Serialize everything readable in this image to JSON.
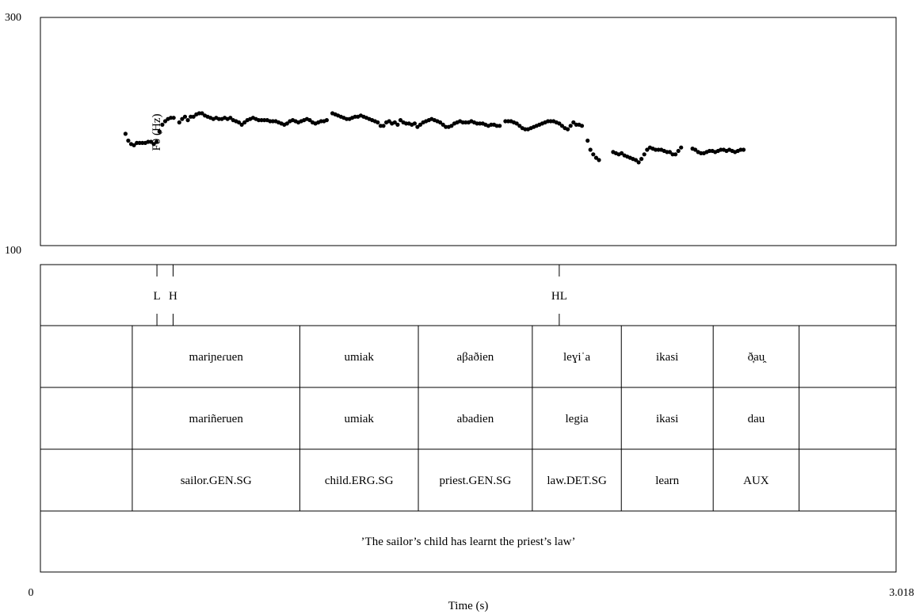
{
  "chart_data": {
    "type": "scatter",
    "xlabel": "Time (s)",
    "ylabel": "F0 (Hz)",
    "xlim": [
      0,
      3.018
    ],
    "ylim": [
      100,
      300
    ],
    "x_tick_labels": [
      "0",
      "3.018"
    ],
    "y_tick_labels": [
      "300",
      "100"
    ],
    "grid": false,
    "points": [
      [
        0.3,
        198
      ],
      [
        0.31,
        192
      ],
      [
        0.32,
        189
      ],
      [
        0.33,
        188
      ],
      [
        0.34,
        190
      ],
      [
        0.35,
        190
      ],
      [
        0.36,
        190
      ],
      [
        0.37,
        190
      ],
      [
        0.38,
        191
      ],
      [
        0.39,
        191
      ],
      [
        0.4,
        189
      ],
      [
        0.41,
        191
      ],
      [
        0.42,
        200
      ],
      [
        0.43,
        206
      ],
      [
        0.44,
        209
      ],
      [
        0.45,
        211
      ],
      [
        0.46,
        212
      ],
      [
        0.47,
        212
      ],
      [
        0.49,
        208
      ],
      [
        0.5,
        211
      ],
      [
        0.51,
        213
      ],
      [
        0.52,
        210
      ],
      [
        0.53,
        213
      ],
      [
        0.54,
        213
      ],
      [
        0.55,
        215
      ],
      [
        0.56,
        216
      ],
      [
        0.57,
        216
      ],
      [
        0.58,
        214
      ],
      [
        0.59,
        213
      ],
      [
        0.6,
        212
      ],
      [
        0.61,
        211
      ],
      [
        0.62,
        212
      ],
      [
        0.63,
        211
      ],
      [
        0.64,
        211
      ],
      [
        0.65,
        212
      ],
      [
        0.66,
        211
      ],
      [
        0.67,
        212
      ],
      [
        0.68,
        210
      ],
      [
        0.69,
        209
      ],
      [
        0.7,
        208
      ],
      [
        0.71,
        206
      ],
      [
        0.72,
        208
      ],
      [
        0.73,
        210
      ],
      [
        0.74,
        211
      ],
      [
        0.75,
        212
      ],
      [
        0.76,
        211
      ],
      [
        0.77,
        210
      ],
      [
        0.78,
        210
      ],
      [
        0.79,
        210
      ],
      [
        0.8,
        210
      ],
      [
        0.81,
        209
      ],
      [
        0.82,
        209
      ],
      [
        0.83,
        209
      ],
      [
        0.84,
        208
      ],
      [
        0.85,
        207
      ],
      [
        0.86,
        206
      ],
      [
        0.87,
        207
      ],
      [
        0.88,
        209
      ],
      [
        0.89,
        210
      ],
      [
        0.9,
        209
      ],
      [
        0.91,
        208
      ],
      [
        0.92,
        209
      ],
      [
        0.93,
        210
      ],
      [
        0.94,
        211
      ],
      [
        0.95,
        210
      ],
      [
        0.96,
        208
      ],
      [
        0.97,
        207
      ],
      [
        0.98,
        208
      ],
      [
        0.99,
        209
      ],
      [
        1.0,
        209
      ],
      [
        1.01,
        210
      ],
      [
        1.03,
        216
      ],
      [
        1.04,
        215
      ],
      [
        1.05,
        214
      ],
      [
        1.06,
        213
      ],
      [
        1.07,
        212
      ],
      [
        1.08,
        211
      ],
      [
        1.09,
        211
      ],
      [
        1.1,
        212
      ],
      [
        1.11,
        213
      ],
      [
        1.12,
        213
      ],
      [
        1.13,
        214
      ],
      [
        1.14,
        213
      ],
      [
        1.15,
        212
      ],
      [
        1.16,
        211
      ],
      [
        1.17,
        210
      ],
      [
        1.18,
        209
      ],
      [
        1.19,
        208
      ],
      [
        1.2,
        205
      ],
      [
        1.21,
        205
      ],
      [
        1.22,
        208
      ],
      [
        1.23,
        209
      ],
      [
        1.24,
        207
      ],
      [
        1.25,
        208
      ],
      [
        1.26,
        206
      ],
      [
        1.27,
        210
      ],
      [
        1.28,
        208
      ],
      [
        1.29,
        207
      ],
      [
        1.3,
        207
      ],
      [
        1.31,
        206
      ],
      [
        1.32,
        207
      ],
      [
        1.33,
        204
      ],
      [
        1.34,
        206
      ],
      [
        1.35,
        208
      ],
      [
        1.36,
        209
      ],
      [
        1.37,
        210
      ],
      [
        1.38,
        211
      ],
      [
        1.39,
        210
      ],
      [
        1.4,
        209
      ],
      [
        1.41,
        208
      ],
      [
        1.42,
        206
      ],
      [
        1.43,
        204
      ],
      [
        1.44,
        204
      ],
      [
        1.45,
        205
      ],
      [
        1.46,
        207
      ],
      [
        1.47,
        208
      ],
      [
        1.48,
        209
      ],
      [
        1.49,
        208
      ],
      [
        1.5,
        208
      ],
      [
        1.51,
        208
      ],
      [
        1.52,
        209
      ],
      [
        1.53,
        208
      ],
      [
        1.54,
        207
      ],
      [
        1.55,
        207
      ],
      [
        1.56,
        207
      ],
      [
        1.57,
        206
      ],
      [
        1.58,
        205
      ],
      [
        1.59,
        206
      ],
      [
        1.6,
        206
      ],
      [
        1.61,
        205
      ],
      [
        1.62,
        205
      ],
      [
        1.64,
        209
      ],
      [
        1.65,
        209
      ],
      [
        1.66,
        209
      ],
      [
        1.67,
        208
      ],
      [
        1.68,
        207
      ],
      [
        1.69,
        205
      ],
      [
        1.7,
        203
      ],
      [
        1.71,
        202
      ],
      [
        1.72,
        202
      ],
      [
        1.73,
        203
      ],
      [
        1.74,
        204
      ],
      [
        1.75,
        205
      ],
      [
        1.76,
        206
      ],
      [
        1.77,
        207
      ],
      [
        1.78,
        208
      ],
      [
        1.79,
        209
      ],
      [
        1.8,
        209
      ],
      [
        1.81,
        209
      ],
      [
        1.82,
        208
      ],
      [
        1.83,
        207
      ],
      [
        1.84,
        205
      ],
      [
        1.85,
        203
      ],
      [
        1.86,
        202
      ],
      [
        1.87,
        205
      ],
      [
        1.88,
        208
      ],
      [
        1.89,
        206
      ],
      [
        1.9,
        206
      ],
      [
        1.91,
        205
      ],
      [
        1.93,
        192
      ],
      [
        1.94,
        184
      ],
      [
        1.95,
        180
      ],
      [
        1.96,
        177
      ],
      [
        1.97,
        175
      ],
      [
        2.02,
        182
      ],
      [
        2.03,
        181
      ],
      [
        2.04,
        180
      ],
      [
        2.05,
        181
      ],
      [
        2.06,
        179
      ],
      [
        2.07,
        178
      ],
      [
        2.08,
        177
      ],
      [
        2.09,
        176
      ],
      [
        2.1,
        175
      ],
      [
        2.11,
        173
      ],
      [
        2.12,
        176
      ],
      [
        2.13,
        180
      ],
      [
        2.14,
        184
      ],
      [
        2.15,
        186
      ],
      [
        2.16,
        185
      ],
      [
        2.17,
        184
      ],
      [
        2.18,
        184
      ],
      [
        2.19,
        184
      ],
      [
        2.2,
        183
      ],
      [
        2.21,
        182
      ],
      [
        2.22,
        182
      ],
      [
        2.23,
        180
      ],
      [
        2.24,
        180
      ],
      [
        2.25,
        183
      ],
      [
        2.26,
        186
      ],
      [
        2.3,
        185
      ],
      [
        2.31,
        184
      ],
      [
        2.32,
        182
      ],
      [
        2.33,
        181
      ],
      [
        2.34,
        181
      ],
      [
        2.35,
        182
      ],
      [
        2.36,
        183
      ],
      [
        2.37,
        183
      ],
      [
        2.38,
        182
      ],
      [
        2.39,
        183
      ],
      [
        2.4,
        184
      ],
      [
        2.41,
        184
      ],
      [
        2.42,
        183
      ],
      [
        2.43,
        184
      ],
      [
        2.44,
        183
      ],
      [
        2.45,
        182
      ],
      [
        2.46,
        183
      ],
      [
        2.47,
        184
      ],
      [
        2.48,
        184
      ]
    ]
  },
  "annotation": {
    "tones": [
      {
        "label": "L",
        "time": 0.411
      },
      {
        "label": "H",
        "time": 0.468
      },
      {
        "label": "HL",
        "time": 1.83
      }
    ],
    "word_boundaries": [
      0.324,
      0.915,
      1.333,
      1.735,
      2.049,
      2.373,
      2.676
    ],
    "tiers": [
      [
        "mariɲeɾuen",
        "umiak",
        "aβaðien",
        "leɣiˈa",
        "ikasi",
        "ð̞au̯"
      ],
      [
        "mariñeruen",
        "umiak",
        "abadien",
        "legia",
        "ikasi",
        "dau"
      ],
      [
        "sailor.GEN.SG",
        "child.ERG.SG",
        "priest.GEN.SG",
        "law.DET.SG",
        "learn",
        "AUX"
      ]
    ],
    "translation": "’The sailor’s child has learnt the priest’s law’"
  }
}
